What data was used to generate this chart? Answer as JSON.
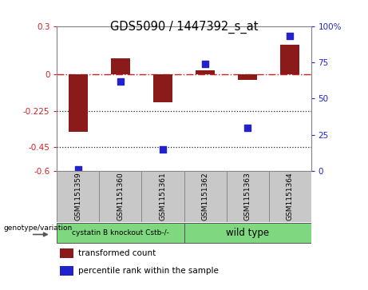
{
  "title": "GDS5090 / 1447392_s_at",
  "samples": [
    "GSM1151359",
    "GSM1151360",
    "GSM1151361",
    "GSM1151362",
    "GSM1151363",
    "GSM1151364"
  ],
  "transformed_count": [
    -0.355,
    0.1,
    -0.175,
    0.028,
    -0.032,
    0.185
  ],
  "percentile_rank": [
    1,
    62,
    15,
    74,
    30,
    93
  ],
  "ylim_left": [
    -0.6,
    0.3
  ],
  "ylim_right": [
    0,
    100
  ],
  "yticks_left": [
    0.3,
    0.0,
    -0.225,
    -0.45,
    -0.6
  ],
  "yticks_right": [
    100,
    75,
    50,
    25,
    0
  ],
  "ytick_labels_left": [
    "0.3",
    "0",
    "-0.225",
    "-0.45",
    "-0.6"
  ],
  "ytick_labels_right": [
    "100%",
    "75",
    "50",
    "25",
    "0"
  ],
  "hlines": [
    -0.225,
    -0.45
  ],
  "group1_label": "cystatin B knockout Cstb-/-",
  "group2_label": "wild type",
  "group_color": "#7FD87F",
  "group1_indices": [
    0,
    1,
    2
  ],
  "group2_indices": [
    3,
    4,
    5
  ],
  "bar_color": "#8B1A1A",
  "dot_color": "#2222CC",
  "genotype_label": "genotype/variation",
  "legend_bar_label": "transformed count",
  "legend_dot_label": "percentile rank within the sample",
  "bar_width": 0.45,
  "dot_size": 28,
  "background_color": "#ffffff",
  "zero_line_color": "#CC2222",
  "hline_color": "#222222",
  "box_color": "#C8C8C8",
  "spine_color": "#888888"
}
